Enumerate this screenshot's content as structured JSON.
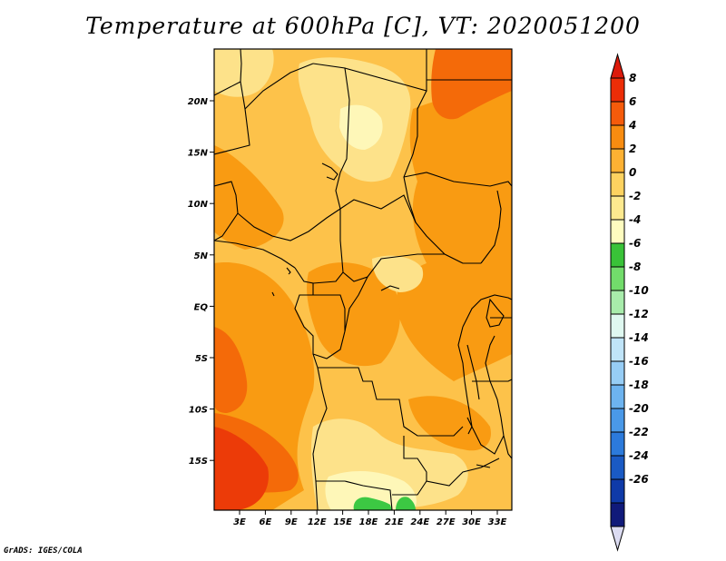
{
  "title": "Temperature at 600hPa [C], VT: 2020051200",
  "credit": "GrADS: IGES/COLA",
  "colors": {
    "bg": "#fdc24a",
    "hot": "#f99b12",
    "hotter": "#f46a09",
    "hottest": "#ec3b08",
    "cool": "#fde28a",
    "cooler": "#fef7b8",
    "green": "#3cc843",
    "border": "#000000"
  },
  "x_ticks": [
    "3E",
    "6E",
    "9E",
    "12E",
    "15E",
    "18E",
    "21E",
    "24E",
    "27E",
    "30E",
    "33E"
  ],
  "y_ticks": [
    "20N",
    "15N",
    "10N",
    "5N",
    "EQ",
    "5S",
    "10S",
    "15S"
  ],
  "colorbar": {
    "labels": [
      "8",
      "6",
      "4",
      "2",
      "0",
      "-2",
      "-4",
      "-6",
      "-8",
      "-10",
      "-12",
      "-14",
      "-16",
      "-18",
      "-20",
      "-22",
      "-24",
      "-26"
    ],
    "colors": [
      "#ec2d07",
      "#f55b0b",
      "#f88c10",
      "#fdb133",
      "#fdd260",
      "#fde98f",
      "#fefcbf",
      "#39c238",
      "#72dc6b",
      "#a8ecab",
      "#dff8f0",
      "#c0e4f8",
      "#97cdf5",
      "#6db3ef",
      "#4a99e8",
      "#2c7adb",
      "#1a5ac4",
      "#0f3aa8",
      "#101a7a"
    ],
    "top_arrow_color": "#dc1a0b",
    "bottom_arrow_color": "#dcdcf2"
  }
}
